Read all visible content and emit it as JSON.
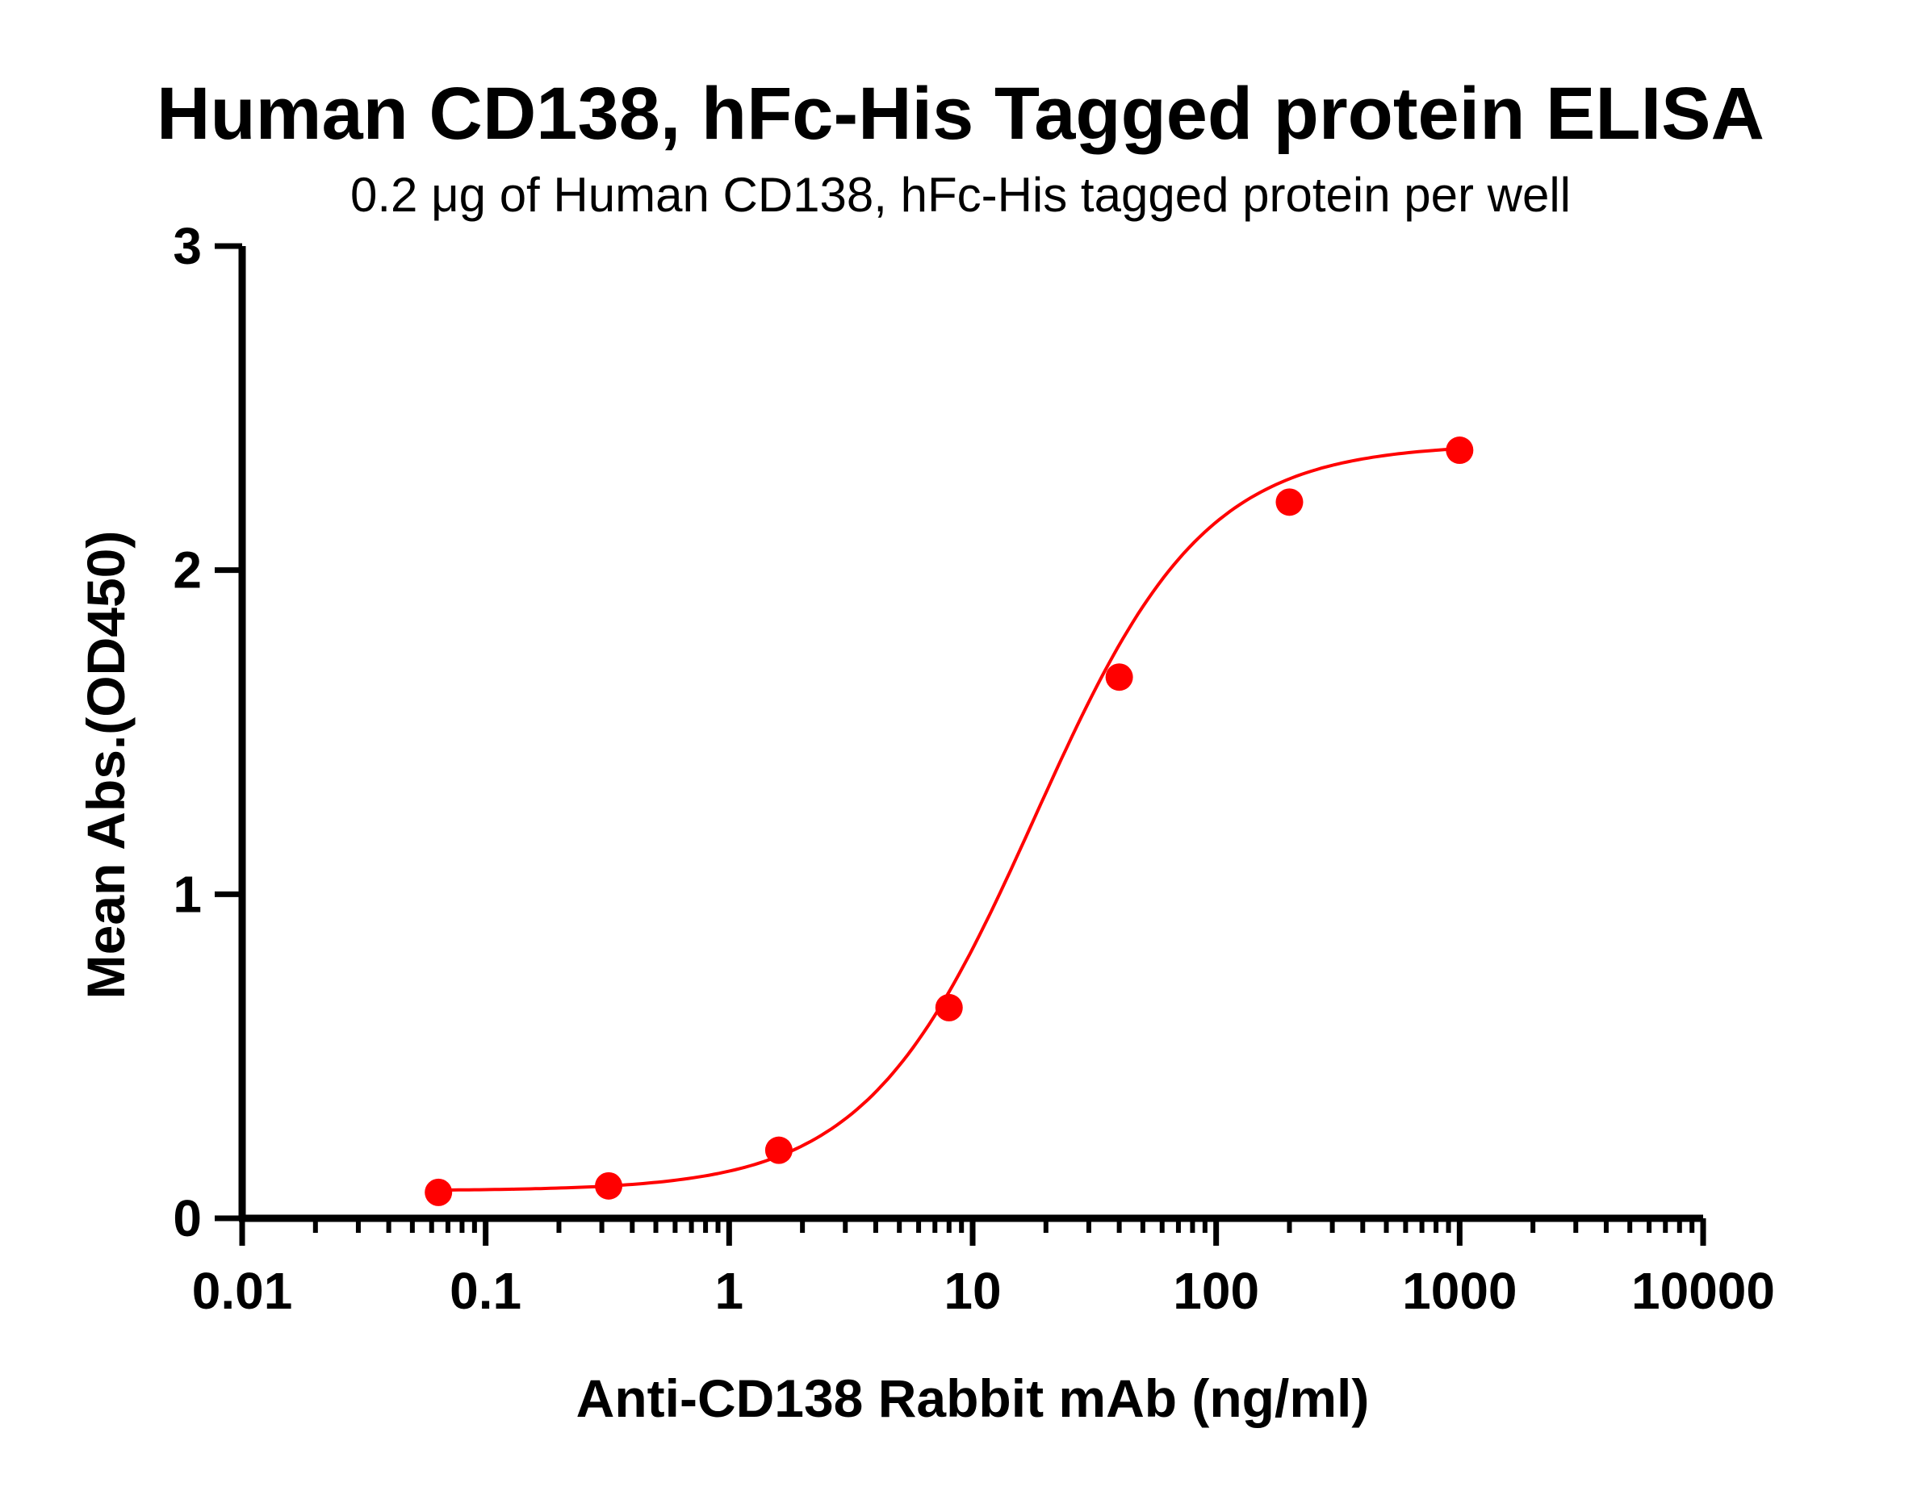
{
  "chart_data": {
    "type": "scatter",
    "title": "Human CD138,  hFc-His Tagged protein ELISA",
    "subtitle": "0.2 μg of Human CD138, hFc-His tagged protein per well",
    "xlabel": "Anti-CD138 Rabbit mAb (ng/ml)",
    "ylabel": "Mean Abs.(OD450)",
    "x_scale": "log",
    "xlim": [
      0.01,
      10000
    ],
    "ylim": [
      0,
      3
    ],
    "x_ticks": [
      {
        "value": 0.01,
        "label": "0.01"
      },
      {
        "value": 0.1,
        "label": "0.1"
      },
      {
        "value": 1,
        "label": "1"
      },
      {
        "value": 10,
        "label": "10"
      },
      {
        "value": 100,
        "label": "100"
      },
      {
        "value": 1000,
        "label": "1000"
      },
      {
        "value": 10000,
        "label": "10000"
      }
    ],
    "y_ticks": [
      {
        "value": 0,
        "label": "0"
      },
      {
        "value": 1,
        "label": "1"
      },
      {
        "value": 2,
        "label": "2"
      },
      {
        "value": 3,
        "label": "3"
      }
    ],
    "grid": false,
    "legend": "none",
    "color": "#ff0000",
    "series": [
      {
        "x": [
          0.064,
          0.32,
          1.6,
          8,
          40,
          200,
          1000
        ],
        "y": [
          0.08,
          0.1,
          0.21,
          0.65,
          1.67,
          2.21,
          2.37
        ]
      }
    ],
    "fit": {
      "model": "4PL",
      "bottom": 0.085,
      "top": 2.39,
      "ec50": 18,
      "hill": 1.25
    }
  }
}
